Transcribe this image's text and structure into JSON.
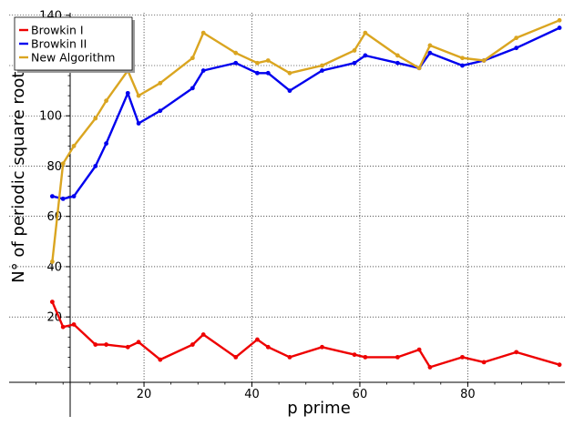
{
  "chart_data": {
    "type": "line",
    "title": "",
    "xlabel": "p prime",
    "ylabel": "N° of periodic square roots",
    "xlim": [
      -5,
      98
    ],
    "ylim": [
      -6,
      141
    ],
    "x_ticks": [
      20,
      40,
      60,
      80
    ],
    "y_ticks": [
      20,
      40,
      60,
      80,
      100,
      120,
      140
    ],
    "x_tick_labels": [
      "20",
      "40",
      "60",
      "80"
    ],
    "y_tick_labels": [
      "20",
      "40",
      "60",
      "80",
      "100",
      "",
      "140"
    ],
    "grid": true,
    "legend_position": "top-left",
    "x": [
      3,
      5,
      7,
      11,
      13,
      17,
      19,
      23,
      29,
      31,
      37,
      41,
      43,
      47,
      53,
      59,
      61,
      67,
      71,
      73,
      79,
      83,
      89,
      97
    ],
    "series": [
      {
        "name": "Browkin I",
        "color": "#ee0000",
        "values": [
          26,
          16,
          17,
          9,
          9,
          8,
          10,
          3,
          9,
          13,
          4,
          11,
          8,
          4,
          8,
          5,
          4,
          4,
          7,
          0,
          4,
          2,
          6,
          1
        ]
      },
      {
        "name": "Browkin II",
        "color": "#0000ee",
        "values": [
          68,
          67,
          68,
          80,
          89,
          109,
          97,
          102,
          111,
          118,
          121,
          117,
          117,
          110,
          118,
          121,
          124,
          121,
          119,
          125,
          120,
          122,
          127,
          135
        ]
      },
      {
        "name": "New Algorithm",
        "color": "#daa520",
        "values": [
          42,
          81,
          88,
          99,
          106,
          118,
          108,
          113,
          123,
          133,
          125,
          121,
          122,
          117,
          120,
          126,
          133,
          124,
          119,
          128,
          123,
          122,
          131,
          138
        ]
      }
    ]
  }
}
